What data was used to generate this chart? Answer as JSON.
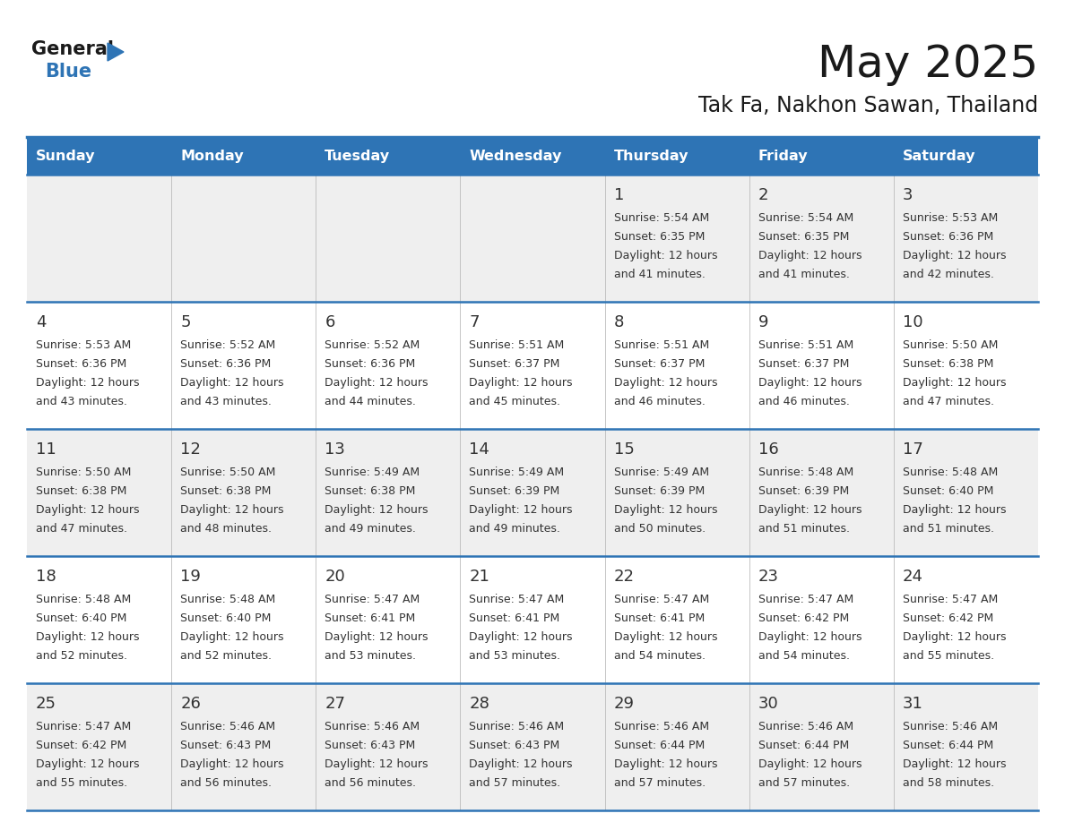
{
  "title": "May 2025",
  "subtitle": "Tak Fa, Nakhon Sawan, Thailand",
  "header_bg": "#2E74B5",
  "header_text_color": "#FFFFFF",
  "days_of_week": [
    "Sunday",
    "Monday",
    "Tuesday",
    "Wednesday",
    "Thursday",
    "Friday",
    "Saturday"
  ],
  "row_bg_odd": "#EFEFEF",
  "row_bg_even": "#FFFFFF",
  "separator_color": "#2E74B5",
  "day_number_color": "#333333",
  "cell_text_color": "#333333",
  "calendar": [
    [
      null,
      null,
      null,
      null,
      {
        "day": 1,
        "sunrise": "5:54 AM",
        "sunset": "6:35 PM",
        "daylight": "12 hours and 41 minutes"
      },
      {
        "day": 2,
        "sunrise": "5:54 AM",
        "sunset": "6:35 PM",
        "daylight": "12 hours and 41 minutes"
      },
      {
        "day": 3,
        "sunrise": "5:53 AM",
        "sunset": "6:36 PM",
        "daylight": "12 hours and 42 minutes"
      }
    ],
    [
      {
        "day": 4,
        "sunrise": "5:53 AM",
        "sunset": "6:36 PM",
        "daylight": "12 hours and 43 minutes"
      },
      {
        "day": 5,
        "sunrise": "5:52 AM",
        "sunset": "6:36 PM",
        "daylight": "12 hours and 43 minutes"
      },
      {
        "day": 6,
        "sunrise": "5:52 AM",
        "sunset": "6:36 PM",
        "daylight": "12 hours and 44 minutes"
      },
      {
        "day": 7,
        "sunrise": "5:51 AM",
        "sunset": "6:37 PM",
        "daylight": "12 hours and 45 minutes"
      },
      {
        "day": 8,
        "sunrise": "5:51 AM",
        "sunset": "6:37 PM",
        "daylight": "12 hours and 46 minutes"
      },
      {
        "day": 9,
        "sunrise": "5:51 AM",
        "sunset": "6:37 PM",
        "daylight": "12 hours and 46 minutes"
      },
      {
        "day": 10,
        "sunrise": "5:50 AM",
        "sunset": "6:38 PM",
        "daylight": "12 hours and 47 minutes"
      }
    ],
    [
      {
        "day": 11,
        "sunrise": "5:50 AM",
        "sunset": "6:38 PM",
        "daylight": "12 hours and 47 minutes"
      },
      {
        "day": 12,
        "sunrise": "5:50 AM",
        "sunset": "6:38 PM",
        "daylight": "12 hours and 48 minutes"
      },
      {
        "day": 13,
        "sunrise": "5:49 AM",
        "sunset": "6:38 PM",
        "daylight": "12 hours and 49 minutes"
      },
      {
        "day": 14,
        "sunrise": "5:49 AM",
        "sunset": "6:39 PM",
        "daylight": "12 hours and 49 minutes"
      },
      {
        "day": 15,
        "sunrise": "5:49 AM",
        "sunset": "6:39 PM",
        "daylight": "12 hours and 50 minutes"
      },
      {
        "day": 16,
        "sunrise": "5:48 AM",
        "sunset": "6:39 PM",
        "daylight": "12 hours and 51 minutes"
      },
      {
        "day": 17,
        "sunrise": "5:48 AM",
        "sunset": "6:40 PM",
        "daylight": "12 hours and 51 minutes"
      }
    ],
    [
      {
        "day": 18,
        "sunrise": "5:48 AM",
        "sunset": "6:40 PM",
        "daylight": "12 hours and 52 minutes"
      },
      {
        "day": 19,
        "sunrise": "5:48 AM",
        "sunset": "6:40 PM",
        "daylight": "12 hours and 52 minutes"
      },
      {
        "day": 20,
        "sunrise": "5:47 AM",
        "sunset": "6:41 PM",
        "daylight": "12 hours and 53 minutes"
      },
      {
        "day": 21,
        "sunrise": "5:47 AM",
        "sunset": "6:41 PM",
        "daylight": "12 hours and 53 minutes"
      },
      {
        "day": 22,
        "sunrise": "5:47 AM",
        "sunset": "6:41 PM",
        "daylight": "12 hours and 54 minutes"
      },
      {
        "day": 23,
        "sunrise": "5:47 AM",
        "sunset": "6:42 PM",
        "daylight": "12 hours and 54 minutes"
      },
      {
        "day": 24,
        "sunrise": "5:47 AM",
        "sunset": "6:42 PM",
        "daylight": "12 hours and 55 minutes"
      }
    ],
    [
      {
        "day": 25,
        "sunrise": "5:47 AM",
        "sunset": "6:42 PM",
        "daylight": "12 hours and 55 minutes"
      },
      {
        "day": 26,
        "sunrise": "5:46 AM",
        "sunset": "6:43 PM",
        "daylight": "12 hours and 56 minutes"
      },
      {
        "day": 27,
        "sunrise": "5:46 AM",
        "sunset": "6:43 PM",
        "daylight": "12 hours and 56 minutes"
      },
      {
        "day": 28,
        "sunrise": "5:46 AM",
        "sunset": "6:43 PM",
        "daylight": "12 hours and 57 minutes"
      },
      {
        "day": 29,
        "sunrise": "5:46 AM",
        "sunset": "6:44 PM",
        "daylight": "12 hours and 57 minutes"
      },
      {
        "day": 30,
        "sunrise": "5:46 AM",
        "sunset": "6:44 PM",
        "daylight": "12 hours and 57 minutes"
      },
      {
        "day": 31,
        "sunrise": "5:46 AM",
        "sunset": "6:44 PM",
        "daylight": "12 hours and 58 minutes"
      }
    ]
  ]
}
